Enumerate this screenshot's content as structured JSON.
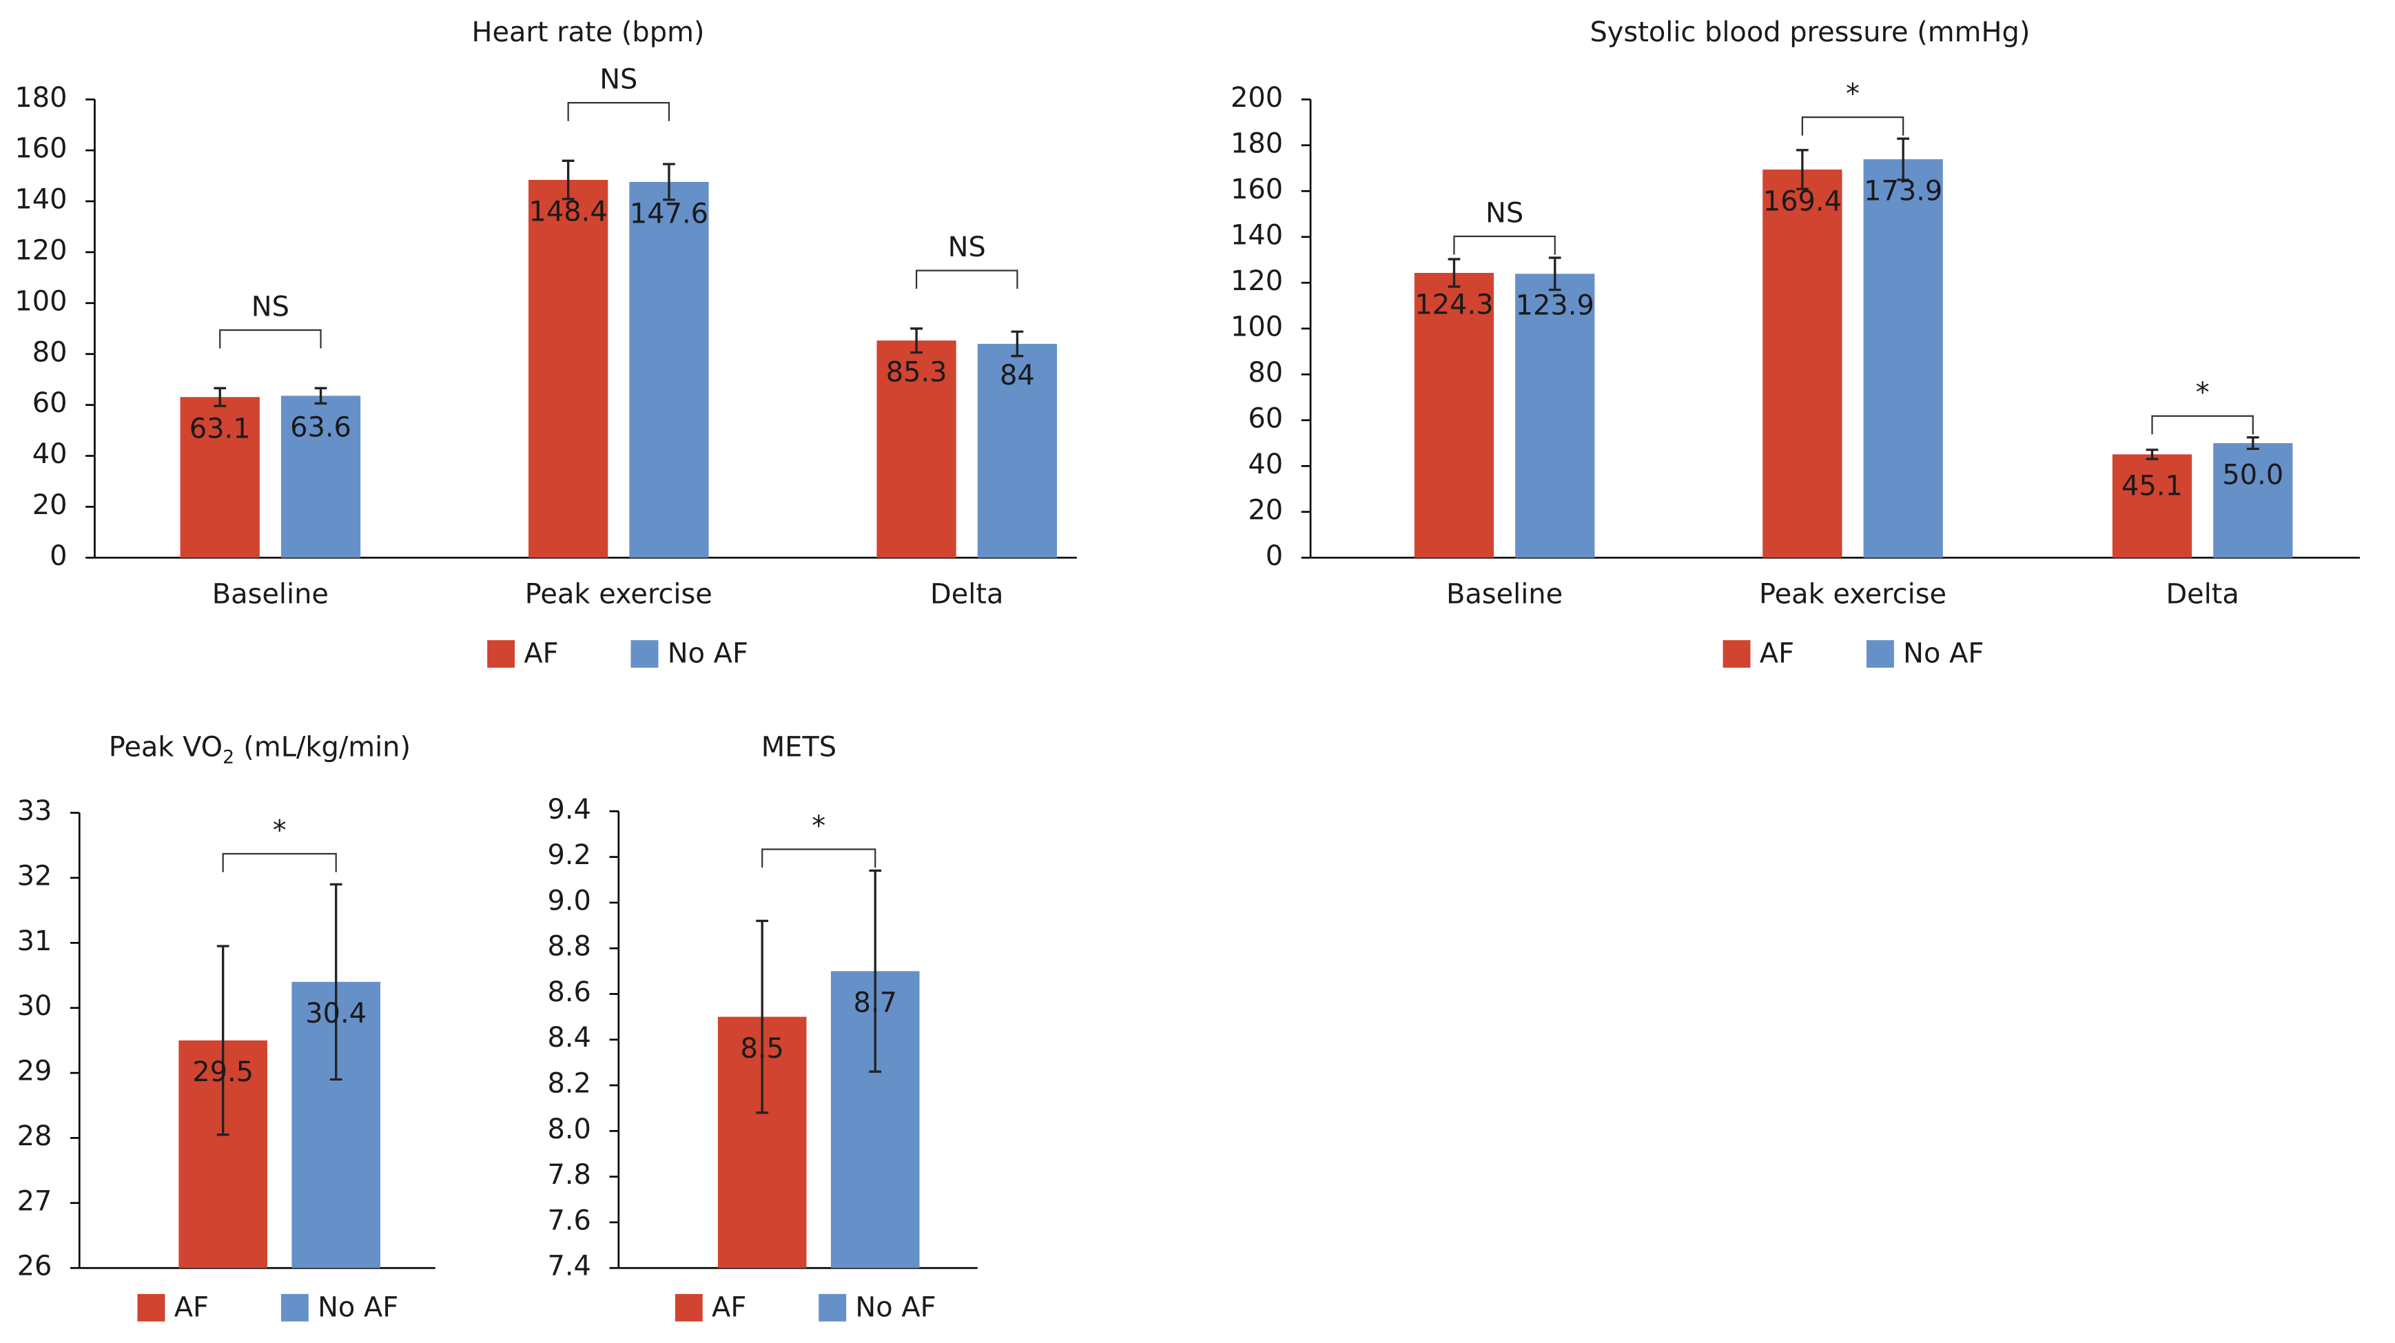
{
  "chart_data": [
    {
      "type": "bar",
      "title": "Heart rate (bpm)",
      "categories": [
        "Baseline",
        "Peak exercise",
        "Delta"
      ],
      "series": [
        {
          "name": "AF",
          "color": "#d04430",
          "values": [
            63.1,
            148.4,
            85.3
          ],
          "errors": [
            3.5,
            7.5,
            4.7
          ]
        },
        {
          "name": "No AF",
          "color": "#6690c8",
          "values": [
            63.6,
            147.6,
            84
          ],
          "errors": [
            3,
            7,
            4.8
          ]
        }
      ],
      "significance": [
        "NS",
        "NS",
        "NS"
      ],
      "ylim": [
        0,
        180
      ],
      "yticks": [
        0,
        20,
        40,
        60,
        80,
        100,
        120,
        140,
        160,
        180
      ]
    },
    {
      "type": "bar",
      "title": "Systolic blood pressure (mmHg)",
      "categories": [
        "Baseline",
        "Peak exercise",
        "Delta"
      ],
      "series": [
        {
          "name": "AF",
          "color": "#d04430",
          "values": [
            124.3,
            169.4,
            45.1
          ],
          "errors": [
            6,
            8.5,
            2
          ]
        },
        {
          "name": "No AF",
          "color": "#6690c8",
          "values": [
            123.9,
            173.9,
            50.0
          ],
          "value_labels": [
            "123.9",
            "173.9",
            "50.0"
          ],
          "errors": [
            7,
            9,
            2.5
          ]
        }
      ],
      "significance": [
        "NS",
        "*",
        "*"
      ],
      "ylim": [
        0,
        200
      ],
      "yticks": [
        0,
        20,
        40,
        60,
        80,
        100,
        120,
        140,
        160,
        180,
        200
      ]
    },
    {
      "type": "bar",
      "title": "Peak VO",
      "title_subscript": "2",
      "title_suffix": "(mL/kg/min)",
      "series": [
        {
          "name": "AF",
          "color": "#d04430",
          "values": [
            29.5
          ],
          "errors": [
            1.45
          ]
        },
        {
          "name": "No AF",
          "color": "#6690c8",
          "values": [
            30.4
          ],
          "errors": [
            1.5
          ]
        }
      ],
      "significance": [
        "*"
      ],
      "ylim": [
        26,
        33
      ],
      "yticks": [
        26,
        27,
        28,
        29,
        30,
        31,
        32,
        33
      ]
    },
    {
      "type": "bar",
      "title": "METS",
      "series": [
        {
          "name": "AF",
          "color": "#d04430",
          "values": [
            8.5
          ],
          "errors": [
            0.42
          ]
        },
        {
          "name": "No AF",
          "color": "#6690c8",
          "values": [
            8.7
          ],
          "errors": [
            0.44
          ]
        }
      ],
      "significance": [
        "*"
      ],
      "ylim": [
        7.4,
        9.4
      ],
      "yticks": [
        7.4,
        7.6,
        7.8,
        {
          "value": 8.0,
          "label": "8.0"
        },
        8.2,
        8.4,
        8.6,
        8.8,
        {
          "value": 9.0,
          "label": "9.0"
        },
        9.2,
        9.4
      ]
    }
  ]
}
